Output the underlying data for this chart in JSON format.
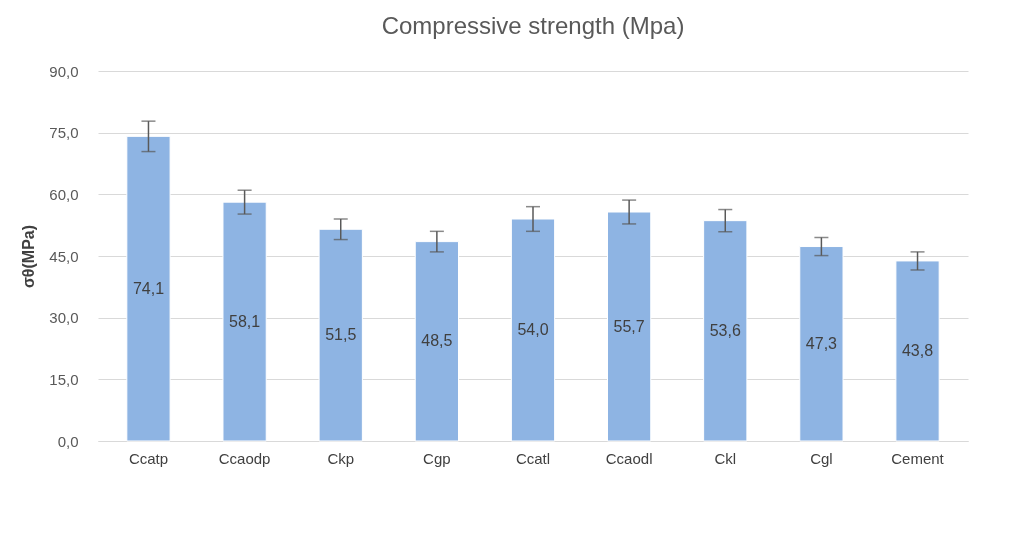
{
  "chart_data": {
    "type": "bar",
    "title": "Compressive strength (Mpa)",
    "ylabel": "σθ(MPa)",
    "categories": [
      "Ccatp",
      "Ccaodp",
      "Ckp",
      "Cgp",
      "Ccatl",
      "Ccaodl",
      "Ckl",
      "Cgl",
      "Cement"
    ],
    "values": [
      74.1,
      58.1,
      51.5,
      48.5,
      54.0,
      55.7,
      53.6,
      47.3,
      43.8
    ],
    "value_labels": [
      "74,1",
      "58,1",
      "51,5",
      "48,5",
      "54,0",
      "55,7",
      "53,6",
      "47,3",
      "43,8"
    ],
    "errors": [
      3.7,
      2.9,
      2.5,
      2.5,
      3.0,
      2.9,
      2.7,
      2.2,
      2.2
    ],
    "color": "#8eb4e3",
    "ylim": [
      0,
      90
    ],
    "yticks": [
      {
        "value": 0,
        "label": "0,0"
      },
      {
        "value": 15,
        "label": "15,0"
      },
      {
        "value": 30,
        "label": "30,0"
      },
      {
        "value": 45,
        "label": "45,0"
      },
      {
        "value": 60,
        "label": "60,0"
      },
      {
        "value": 75,
        "label": "75,0"
      },
      {
        "value": 90,
        "label": "90,0"
      }
    ],
    "grid": "y"
  }
}
